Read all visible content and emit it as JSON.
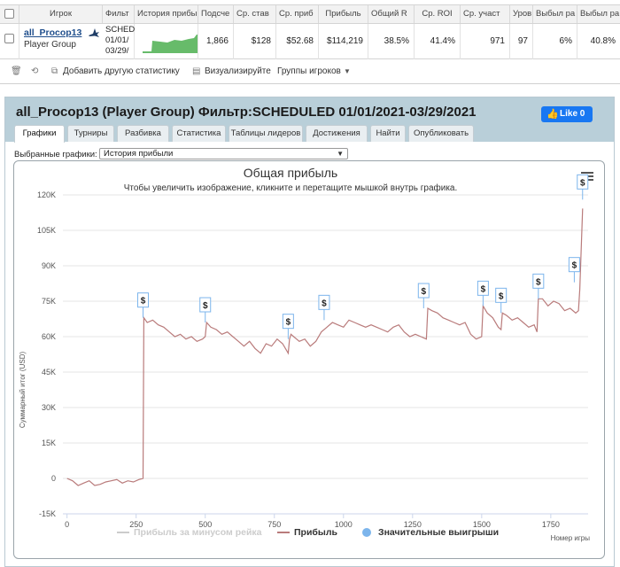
{
  "table": {
    "headers": [
      "Игрок",
      "Фильт",
      "История прибы",
      "Подсче",
      "Ср. став",
      "Ср. приб",
      "Прибыль",
      "Общий R",
      "Ср. ROI",
      "Ср. участ",
      "Уров",
      "Выбыл ра",
      "Выбыл ра"
    ],
    "row": {
      "player_name": "all_Procop13",
      "player_group": "Player Group",
      "filter_text": "SCHED 01/01/ 03/29/",
      "count": "1,866",
      "avg_stake": "$128",
      "avg_profit": "$52.68",
      "profit": "$114,219",
      "total_roi": "38.5%",
      "avg_roi": "41.4%",
      "avg_entrants": "971",
      "level": "97",
      "out1": "6%",
      "out2": "40.8%"
    }
  },
  "toolbar": {
    "add_stats": "Добавить другую статистику",
    "visualize": "Визуализируйте",
    "player_groups": "Группы игроков",
    "icons": [
      "trash-icon",
      "refresh-icon",
      "copy-icon",
      "visualize-icon",
      "chevron-down-icon"
    ]
  },
  "panel": {
    "title": "all_Procop13 (Player Group) Фильтр:SCHEDULED 01/01/2021-03/29/2021",
    "like_label": "Like 0",
    "tabs": [
      "Графики",
      "Турниры",
      "Разбивка",
      "Статистика",
      "Таблицы лидеров",
      "Достижения",
      "Найти",
      "Опубликовать"
    ],
    "active_tab": "Графики",
    "select_label": "Выбранные графики:",
    "select_value": "История прибыли"
  },
  "chart_data": {
    "type": "line",
    "title": "Общая прибыль",
    "subtitle": "Чтобы увеличить изображение, кликните и перетащите мышкой внутрь графика.",
    "ylabel": "Суммарный итог (USD)",
    "xlabel": "Номер игры",
    "ylim": [
      -15000,
      120000
    ],
    "xlim": [
      -15,
      1885
    ],
    "y_ticks": [
      "-15K",
      "0",
      "15K",
      "30K",
      "45K",
      "60K",
      "75K",
      "90K",
      "105K",
      "120K"
    ],
    "x_ticks": [
      "0",
      "250",
      "500",
      "750",
      "1000",
      "1250",
      "1500",
      "1750"
    ],
    "legend": [
      "Прибыль за минусом рейка",
      "Прибыль",
      "Значительные выигрыши"
    ],
    "legend_colors": [
      "#cccccc",
      "#b97b7b",
      "#7cb5ec"
    ],
    "series": [
      {
        "name": "Прибыль",
        "color": "#b97b7b",
        "x": [
          0,
          20,
          40,
          60,
          80,
          100,
          120,
          140,
          160,
          180,
          200,
          220,
          240,
          260,
          275,
          278,
          290,
          310,
          330,
          350,
          370,
          390,
          410,
          430,
          450,
          470,
          490,
          500,
          505,
          520,
          540,
          560,
          580,
          600,
          620,
          640,
          660,
          680,
          700,
          720,
          740,
          760,
          780,
          800,
          805,
          810,
          820,
          840,
          860,
          880,
          900,
          920,
          940,
          960,
          980,
          1000,
          1020,
          1040,
          1060,
          1080,
          1100,
          1120,
          1140,
          1160,
          1180,
          1200,
          1220,
          1240,
          1260,
          1280,
          1300,
          1305,
          1320,
          1340,
          1360,
          1380,
          1400,
          1420,
          1440,
          1460,
          1480,
          1500,
          1505,
          1520,
          1540,
          1560,
          1570,
          1575,
          1590,
          1610,
          1630,
          1650,
          1670,
          1690,
          1700,
          1705,
          1720,
          1740,
          1760,
          1780,
          1800,
          1820,
          1840,
          1850,
          1855,
          1865
        ],
        "y": [
          0,
          -1000,
          -3000,
          -2000,
          -1000,
          -3000,
          -2500,
          -1500,
          -1000,
          -500,
          -2000,
          -1000,
          -1500,
          -500,
          0,
          68000,
          66000,
          67000,
          65000,
          64000,
          62000,
          60000,
          61000,
          59000,
          60000,
          58000,
          59000,
          60000,
          66000,
          64000,
          63000,
          61000,
          62000,
          60000,
          58000,
          56000,
          58000,
          55000,
          53000,
          57000,
          56000,
          59000,
          57000,
          53000,
          59000,
          61000,
          60000,
          58000,
          59000,
          56000,
          58000,
          62000,
          64000,
          66000,
          65000,
          64000,
          67000,
          66000,
          65000,
          64000,
          65000,
          64000,
          63000,
          62000,
          64000,
          65000,
          62000,
          60000,
          61000,
          60000,
          59000,
          72000,
          71000,
          70000,
          68000,
          67000,
          66000,
          65000,
          66000,
          61000,
          59000,
          60000,
          73000,
          70000,
          68000,
          64000,
          63000,
          70000,
          69000,
          67000,
          68000,
          66000,
          64000,
          65000,
          62000,
          76000,
          76000,
          73000,
          75000,
          74000,
          71000,
          72000,
          70000,
          71000,
          80000,
          114219
        ]
      }
    ],
    "big_wins_x": [
      275,
      500,
      800,
      930,
      1290,
      1505,
      1570,
      1705,
      1835,
      1865
    ],
    "big_wins_y": [
      68000,
      66000,
      59000,
      67000,
      72000,
      73000,
      70000,
      76000,
      83000,
      118000
    ],
    "big_win_label": "$"
  }
}
